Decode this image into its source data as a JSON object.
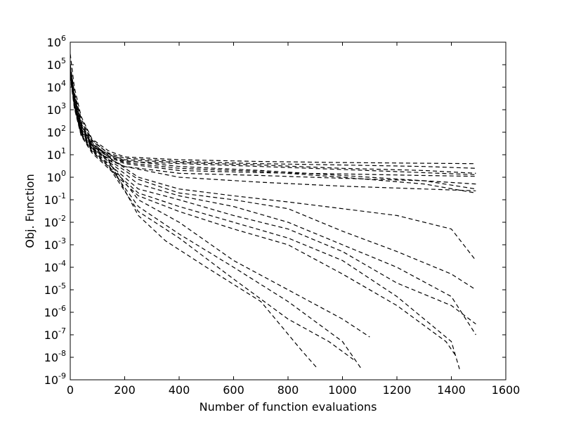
{
  "chart_data": {
    "type": "line",
    "title": "",
    "xlabel": "Number of function evaluations",
    "ylabel": "Obj. Function",
    "x_scale": "linear",
    "y_scale": "log",
    "xlim": [
      0,
      1600
    ],
    "ylim": [
      1e-09,
      1000000.0
    ],
    "x_ticks": [
      0,
      200,
      400,
      600,
      800,
      1000,
      1200,
      1400,
      1600
    ],
    "y_ticks": [
      {
        "base": "10",
        "exp": "6",
        "value": 1000000.0
      },
      {
        "base": "10",
        "exp": "5",
        "value": 100000.0
      },
      {
        "base": "10",
        "exp": "4",
        "value": 10000.0
      },
      {
        "base": "10",
        "exp": "3",
        "value": 1000.0
      },
      {
        "base": "10",
        "exp": "2",
        "value": 100.0
      },
      {
        "base": "10",
        "exp": "1",
        "value": 10.0
      },
      {
        "base": "10",
        "exp": "0",
        "value": 1.0
      },
      {
        "base": "10",
        "exp": "-1",
        "value": 0.1
      },
      {
        "base": "10",
        "exp": "-2",
        "value": 0.01
      },
      {
        "base": "10",
        "exp": "-3",
        "value": 0.001
      },
      {
        "base": "10",
        "exp": "-4",
        "value": 0.0001
      },
      {
        "base": "10",
        "exp": "-5",
        "value": 1e-05
      },
      {
        "base": "10",
        "exp": "-6",
        "value": 1e-06
      },
      {
        "base": "10",
        "exp": "-7",
        "value": 1e-07
      },
      {
        "base": "10",
        "exp": "-8",
        "value": 1e-08
      },
      {
        "base": "10",
        "exp": "-9",
        "value": 1e-09
      }
    ],
    "grid": false,
    "legend": "none",
    "line_style": "dashed",
    "line_color": "#000000",
    "series": [
      {
        "x": [
          0,
          15,
          40,
          80,
          140,
          200,
          400,
          700,
          1000,
          1300,
          1490
        ],
        "y": [
          300000,
          10000,
          500,
          50,
          15,
          8,
          6,
          5,
          4.5,
          4.2,
          4
        ]
      },
      {
        "x": [
          0,
          15,
          40,
          80,
          140,
          200,
          400,
          700,
          1000,
          1300,
          1490
        ],
        "y": [
          100000,
          5000,
          300,
          40,
          12,
          7,
          5,
          4,
          3.5,
          3,
          2.5
        ]
      },
      {
        "x": [
          0,
          15,
          40,
          80,
          140,
          200,
          400,
          700,
          1000,
          1300,
          1490
        ],
        "y": [
          50000,
          3000,
          200,
          30,
          10,
          6,
          4.5,
          3.5,
          2.5,
          2,
          1.5
        ]
      },
      {
        "x": [
          0,
          15,
          40,
          80,
          140,
          200,
          400,
          700,
          1000,
          1300,
          1490
        ],
        "y": [
          80000,
          4000,
          250,
          35,
          9,
          5,
          4,
          3,
          2.2,
          1.6,
          1.3
        ]
      },
      {
        "x": [
          0,
          15,
          40,
          80,
          140,
          200,
          400,
          700,
          1000,
          1300,
          1490
        ],
        "y": [
          60000,
          3500,
          180,
          25,
          8,
          4,
          2,
          1.6,
          1.4,
          1.2,
          1.1
        ]
      },
      {
        "x": [
          0,
          15,
          40,
          80,
          140,
          200,
          400,
          700,
          1000,
          1300,
          1490
        ],
        "y": [
          40000,
          2500,
          150,
          20,
          6,
          3,
          1.5,
          1.2,
          0.9,
          0.7,
          0.5
        ]
      },
      {
        "x": [
          0,
          15,
          40,
          80,
          140,
          200,
          400,
          700,
          1000,
          1300,
          1490
        ],
        "y": [
          90000,
          6000,
          400,
          45,
          11,
          5.5,
          3,
          2,
          1.2,
          0.7,
          0.3
        ]
      },
      {
        "x": [
          0,
          15,
          40,
          80,
          140,
          200,
          400,
          700,
          1000,
          1300,
          1490
        ],
        "y": [
          70000,
          4500,
          220,
          28,
          9,
          4.5,
          2.5,
          1.8,
          1,
          0.5,
          0.2
        ]
      },
      {
        "x": [
          0,
          15,
          40,
          80,
          140,
          200,
          400,
          700,
          1000,
          1300,
          1490
        ],
        "y": [
          30000,
          2000,
          120,
          18,
          7,
          3,
          1,
          0.6,
          0.4,
          0.3,
          0.25
        ]
      },
      {
        "x": [
          0,
          15,
          40,
          80,
          140,
          250,
          400,
          600,
          800,
          1000,
          1200,
          1400,
          1490
        ],
        "y": [
          100000,
          3000,
          150,
          30,
          8,
          1,
          0.3,
          0.15,
          0.08,
          0.04,
          0.02,
          0.005,
          0.0002
        ]
      },
      {
        "x": [
          0,
          15,
          40,
          80,
          140,
          250,
          400,
          600,
          800,
          1000,
          1200,
          1400,
          1490
        ],
        "y": [
          80000,
          2500,
          120,
          25,
          6,
          0.8,
          0.2,
          0.1,
          0.04,
          0.004,
          0.0005,
          5e-05,
          1e-05
        ]
      },
      {
        "x": [
          0,
          15,
          40,
          80,
          140,
          250,
          400,
          600,
          800,
          1000,
          1200,
          1400,
          1490
        ],
        "y": [
          60000,
          2000,
          100,
          20,
          5,
          0.5,
          0.15,
          0.05,
          0.01,
          0.001,
          0.0001,
          5e-06,
          1e-07
        ]
      },
      {
        "x": [
          0,
          15,
          40,
          80,
          140,
          250,
          400,
          600,
          800,
          1000,
          1200,
          1400,
          1490
        ],
        "y": [
          50000,
          1800,
          90,
          18,
          4,
          0.3,
          0.1,
          0.02,
          0.005,
          0.0005,
          2e-05,
          2e-06,
          3e-07
        ]
      },
      {
        "x": [
          0,
          15,
          40,
          80,
          140,
          250,
          400,
          600,
          800,
          1000,
          1200,
          1400,
          1430
        ],
        "y": [
          40000,
          1500,
          80,
          15,
          3,
          0.2,
          0.05,
          0.01,
          0.002,
          0.0002,
          5e-06,
          5e-08,
          3e-09
        ]
      },
      {
        "x": [
          0,
          15,
          40,
          80,
          140,
          250,
          400,
          600,
          800,
          1000,
          1200,
          1380,
          1420
        ],
        "y": [
          30000,
          1200,
          70,
          12,
          2.5,
          0.15,
          0.03,
          0.005,
          0.001,
          5e-05,
          2e-06,
          5e-08,
          1e-08
        ]
      },
      {
        "x": [
          0,
          15,
          40,
          80,
          140,
          250,
          400,
          600,
          800,
          1000,
          1100
        ],
        "y": [
          70000,
          2200,
          110,
          22,
          5,
          0.1,
          0.01,
          0.0002,
          1e-05,
          5e-07,
          8e-08
        ]
      },
      {
        "x": [
          0,
          15,
          40,
          80,
          140,
          250,
          400,
          600,
          800,
          1000,
          1070
        ],
        "y": [
          50000,
          1700,
          85,
          16,
          3.5,
          0.05,
          0.003,
          0.0001,
          3e-06,
          5e-08,
          3e-09
        ]
      },
      {
        "x": [
          0,
          15,
          40,
          80,
          140,
          250,
          350,
          500,
          700,
          850,
          910
        ],
        "y": [
          90000,
          2800,
          130,
          26,
          6,
          0.02,
          0.0015,
          0.0001,
          3e-06,
          2e-08,
          3e-09
        ]
      },
      {
        "x": [
          0,
          15,
          40,
          80,
          140,
          250,
          400,
          600,
          800,
          950,
          1040
        ],
        "y": [
          35000,
          1300,
          75,
          14,
          3,
          0.03,
          0.002,
          3e-05,
          5e-07,
          5e-08,
          8e-09
        ]
      }
    ]
  }
}
